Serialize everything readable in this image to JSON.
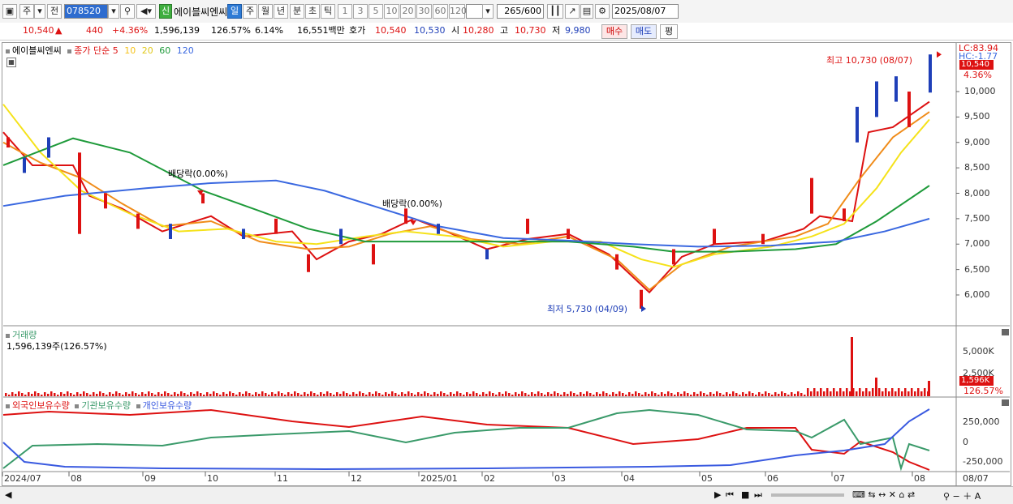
{
  "toolbar": {
    "type_label": "주",
    "prev_label": "전",
    "code": "078520",
    "new_badge": "신",
    "stock_name": "에이블씨엔씨",
    "periods": [
      "일",
      "주",
      "월",
      "년",
      "분",
      "초",
      "틱"
    ],
    "active_period": "일",
    "intervals": [
      "1",
      "3",
      "5",
      "10",
      "20",
      "30",
      "60",
      "120"
    ],
    "count_value": "265",
    "count_total": "/600",
    "date": "2025/08/07"
  },
  "quote": {
    "price": "10,540",
    "change": "440",
    "change_pct": "+4.36%",
    "volume": "1,596,139",
    "volume_ratio": "126.57%",
    "turnover": "6.14%",
    "amount": "16,551백만",
    "bid_label": "호가",
    "bid1": "10,540",
    "bid2": "10,530",
    "open_label": "시",
    "open": "10,280",
    "high_label": "고",
    "high": "10,730",
    "low_label": "저",
    "low": "9,980",
    "buy_label": "매수",
    "sell_label": "매도",
    "avg_label": "평"
  },
  "price_panel": {
    "stock_tag": "에이블씨엔씨",
    "close_label": "종가 단순",
    "ma_periods": [
      "5",
      "10",
      "20",
      "60",
      "120"
    ],
    "lc": "LC:83.94",
    "hc": "HC:-1.77",
    "price_tag": "10,540",
    "pct_tag": "4.36%",
    "y_ticks": [
      "10,000",
      "9,500",
      "9,000",
      "8,500",
      "8,000",
      "7,500",
      "7,000",
      "6,500",
      "6,000"
    ],
    "annotations": {
      "high": "최고 10,730 (08/07)",
      "low": "최저 5,730 (04/09)",
      "div1": "배당락(0.00%)",
      "div2": "배당락(0.00%)"
    }
  },
  "volume_panel": {
    "title": "거래량",
    "value": "1,596,139주(126.57%)",
    "y_ticks": [
      "5,000K",
      "2,500K"
    ],
    "tag_value": "1,596K",
    "tag_pct": "126.57%"
  },
  "holding_panel": {
    "legend": [
      "외국인보유수량",
      "기관보유수량",
      "개인보유수량"
    ],
    "y_ticks": [
      "250,000",
      "0",
      "-250,000"
    ]
  },
  "x_axis": [
    "2024/07",
    "08",
    "09",
    "10",
    "11",
    "12",
    "2025/01",
    "02",
    "03",
    "04",
    "05",
    "06",
    "07",
    "08",
    "08/07"
  ],
  "colors": {
    "up": "#dd1111",
    "down": "#1f3fb8",
    "ma5": "#dd1111",
    "ma10": "#f08c1a",
    "ma20": "#f5e21a",
    "ma60": "#1e9a3a",
    "ma120": "#3a68e0",
    "foreign": "#dd1111",
    "institution": "#3a9a6a",
    "individual": "#3a5ae0"
  },
  "icons": [
    "chart-type-icon",
    "dropdown-icon",
    "search-icon",
    "sound-icon",
    "bar-chart-icon",
    "draw-icon",
    "save-icon",
    "settings-icon",
    "grid-icon"
  ]
}
